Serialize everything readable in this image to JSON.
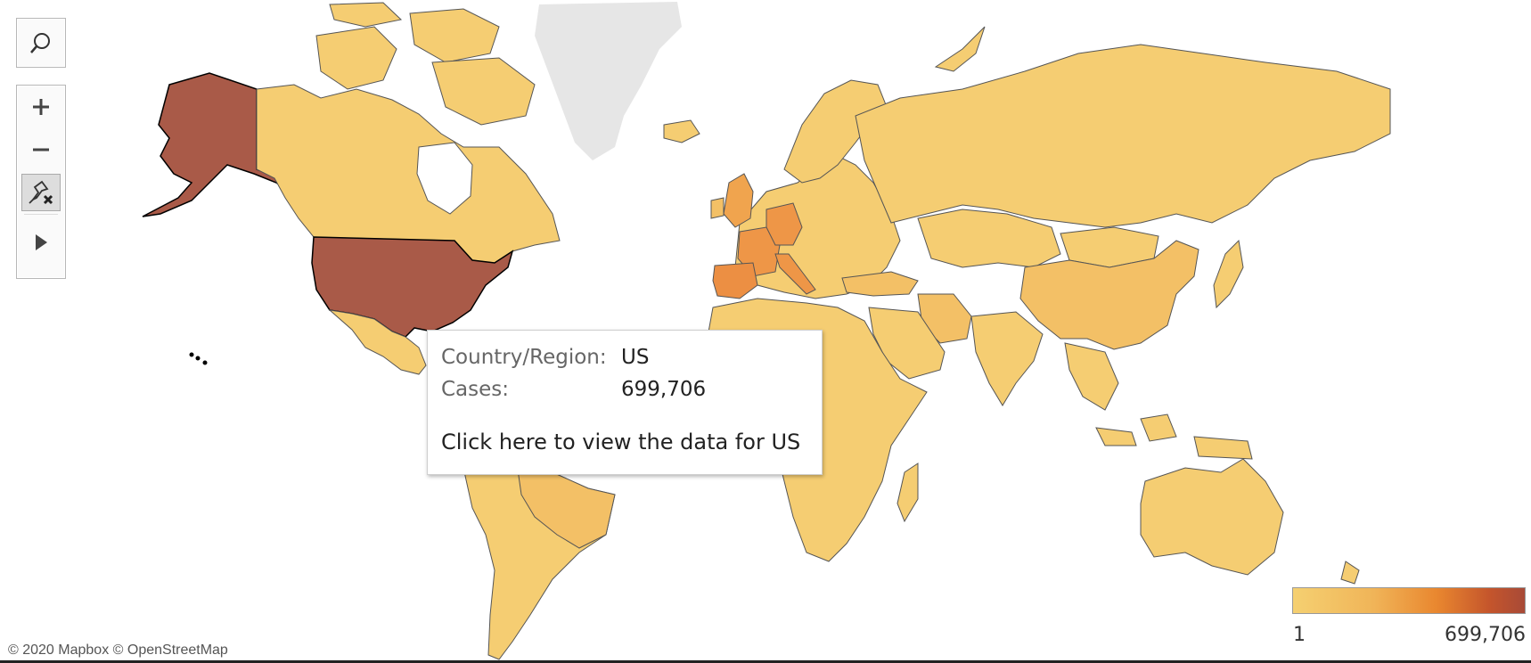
{
  "map": {
    "colors": {
      "ocean": "#ffffff",
      "no_data": "#e6e6e6",
      "low": "#f5d071",
      "mid": "#f0b458",
      "high": "#e9872f",
      "max": "#a84a37",
      "border": "#555555"
    },
    "highlighted_country": "US"
  },
  "controls": {
    "search_icon": "search-icon",
    "zoom_in_icon": "plus-icon",
    "zoom_out_icon": "minus-icon",
    "pin_icon": "pin-reset-icon",
    "play_icon": "play-icon"
  },
  "tooltip": {
    "country_label": "Country/Region:",
    "country_value": "US",
    "cases_label": "Cases:",
    "cases_value": "699,706",
    "link_text": "Click here to view the data for US"
  },
  "legend": {
    "min": "1",
    "max": "699,706"
  },
  "attribution": "© 2020 Mapbox © OpenStreetMap"
}
